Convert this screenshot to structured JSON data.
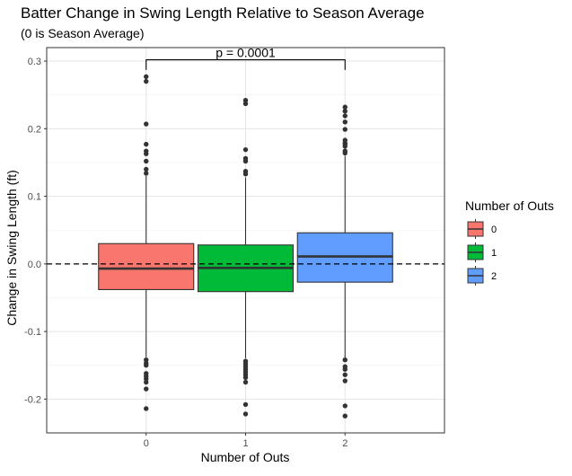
{
  "chart_data": {
    "type": "box",
    "title": "Batter Change in Swing Length Relative to Season Average",
    "subtitle": "(0 is Season Average)",
    "xlabel": "Number of Outs",
    "ylabel": "Change in Swing Length (ft)",
    "ylim": [
      -0.25,
      0.32
    ],
    "y_ticks": [
      -0.2,
      -0.1,
      0.0,
      0.1,
      0.2,
      0.3
    ],
    "y_tick_labels": [
      "-0.2",
      "-0.1",
      "0.0",
      "0.1",
      "0.2",
      "0.3"
    ],
    "categories": [
      "0",
      "1",
      "2"
    ],
    "grid": true,
    "reference_line": {
      "y": 0,
      "style": "dashed"
    },
    "legend": {
      "title": "Number of Outs",
      "position": "right",
      "entries": [
        "0",
        "1",
        "2"
      ]
    },
    "colors": [
      "#F8766D",
      "#00BA38",
      "#619CFF"
    ],
    "series": [
      {
        "category": "0",
        "q1": -0.038,
        "median": -0.007,
        "q3": 0.03,
        "whisker_low": -0.138,
        "whisker_high": 0.13,
        "outliers": [
          0.277,
          0.27,
          0.207,
          0.177,
          0.167,
          0.163,
          0.152,
          0.14,
          0.134,
          -0.142,
          -0.147,
          -0.15,
          -0.162,
          -0.166,
          -0.17,
          -0.175,
          -0.185,
          -0.214
        ]
      },
      {
        "category": "1",
        "q1": -0.041,
        "median": -0.006,
        "q3": 0.028,
        "whisker_low": -0.14,
        "whisker_high": 0.128,
        "outliers": [
          0.242,
          0.237,
          0.169,
          0.156,
          0.152,
          0.137,
          0.133,
          -0.144,
          -0.148,
          -0.152,
          -0.156,
          -0.16,
          -0.164,
          -0.168,
          -0.175,
          -0.208,
          -0.222
        ]
      },
      {
        "category": "2",
        "q1": -0.027,
        "median": 0.011,
        "q3": 0.046,
        "whisker_low": -0.14,
        "whisker_high": 0.16,
        "outliers": [
          0.232,
          0.226,
          0.219,
          0.21,
          0.199,
          0.183,
          0.179,
          0.177,
          0.174,
          0.167,
          0.164,
          -0.142,
          -0.152,
          -0.156,
          -0.164,
          -0.173,
          -0.21,
          -0.225
        ]
      }
    ],
    "annotation": {
      "text": "p = 0.0001",
      "from": "0",
      "to": "2",
      "y": 0.302,
      "tip_y": 0.287
    }
  }
}
